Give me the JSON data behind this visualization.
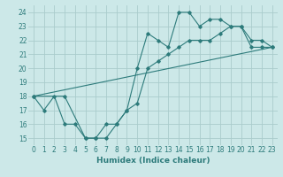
{
  "xlabel": "Humidex (Indice chaleur)",
  "ylabel": "",
  "xlim": [
    -0.5,
    23.5
  ],
  "ylim": [
    14.5,
    24.5
  ],
  "xticks": [
    0,
    1,
    2,
    3,
    4,
    5,
    6,
    7,
    8,
    9,
    10,
    11,
    12,
    13,
    14,
    15,
    16,
    17,
    18,
    19,
    20,
    21,
    22,
    23
  ],
  "yticks": [
    15,
    16,
    17,
    18,
    19,
    20,
    21,
    22,
    23,
    24
  ],
  "bg_color": "#cce8e8",
  "grid_color": "#aacccc",
  "line_color": "#2d7b7b",
  "line1_x": [
    0,
    1,
    2,
    3,
    4,
    5,
    6,
    7,
    8,
    9,
    10,
    11,
    12,
    13,
    14,
    15,
    16,
    17,
    18,
    19,
    20,
    21,
    22,
    23
  ],
  "line1_y": [
    18,
    17,
    18,
    16,
    16,
    15,
    15,
    15,
    16,
    17,
    17.5,
    20,
    20.5,
    21,
    21.5,
    22,
    22,
    22,
    22.5,
    23,
    23,
    21.5,
    21.5,
    21.5
  ],
  "line2_x": [
    0,
    3,
    5,
    6,
    7,
    8,
    9,
    10,
    11,
    12,
    13,
    14,
    15,
    16,
    17,
    18,
    19,
    20,
    21,
    22,
    23
  ],
  "line2_y": [
    18,
    18,
    15,
    15,
    16,
    16,
    17,
    20,
    22.5,
    22,
    21.5,
    24,
    24,
    23,
    23.5,
    23.5,
    23,
    23,
    22,
    22,
    21.5
  ],
  "line3_x": [
    0,
    23
  ],
  "line3_y": [
    18,
    21.5
  ],
  "xlabel_color": "#2d7b7b",
  "xlabel_fontsize": 6.5,
  "tick_fontsize": 5.5,
  "lw": 0.8,
  "ms": 1.8
}
